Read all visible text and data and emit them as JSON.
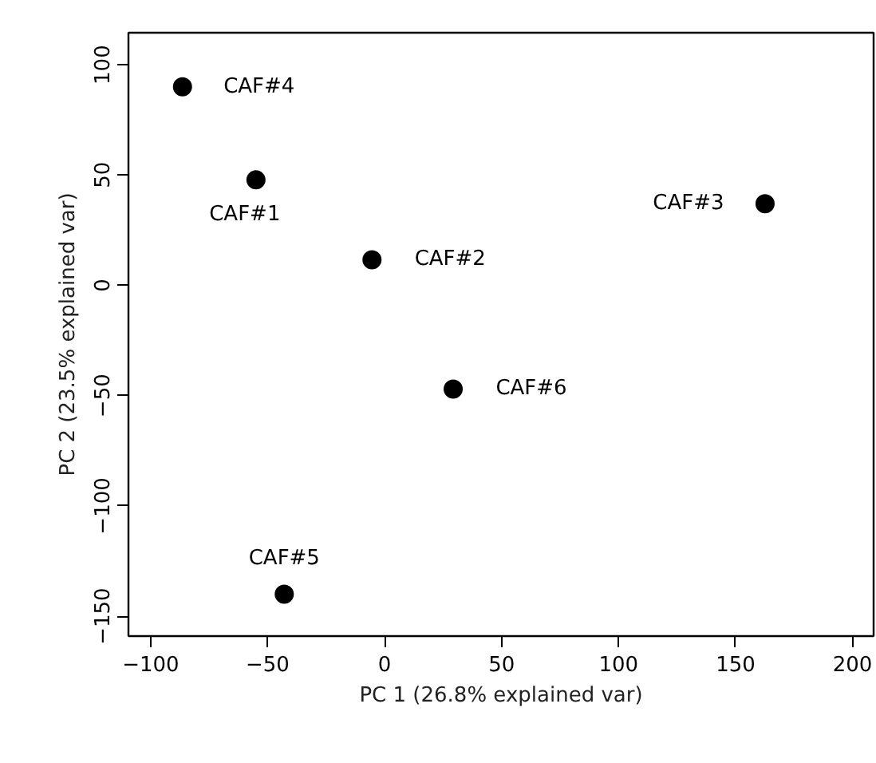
{
  "chart_data": {
    "type": "scatter",
    "xlabel": "PC 1 (26.8% explained var)",
    "ylabel": "PC 2 (23.5% explained var)",
    "x": [
      -55,
      -5.4,
      162.6,
      -86.4,
      -42.9,
      29.3
    ],
    "values": [
      47.8,
      11.6,
      37,
      90,
      -140,
      -47
    ],
    "color": "#000000",
    "marker": "circle",
    "grid": false,
    "xlim": [
      -109.5,
      209
    ],
    "ylim": [
      -159,
      114.5
    ],
    "xticks": [
      -100,
      -50,
      0,
      50,
      100,
      150,
      200
    ],
    "yticks": [
      -150,
      -100,
      -50,
      0,
      50,
      100
    ],
    "annotations": [
      {
        "text": "CAF#1",
        "x": -55,
        "y": 47.8
      },
      {
        "text": "CAF#2",
        "x": -5.4,
        "y": 11.6
      },
      {
        "text": "CAF#3",
        "x": 162.6,
        "y": 37
      },
      {
        "text": "CAF#4",
        "x": -86.4,
        "y": 90
      },
      {
        "text": "CAF#5",
        "x": -42.9,
        "y": -140
      },
      {
        "text": "CAF#6",
        "x": 29.3,
        "y": -47
      }
    ]
  }
}
